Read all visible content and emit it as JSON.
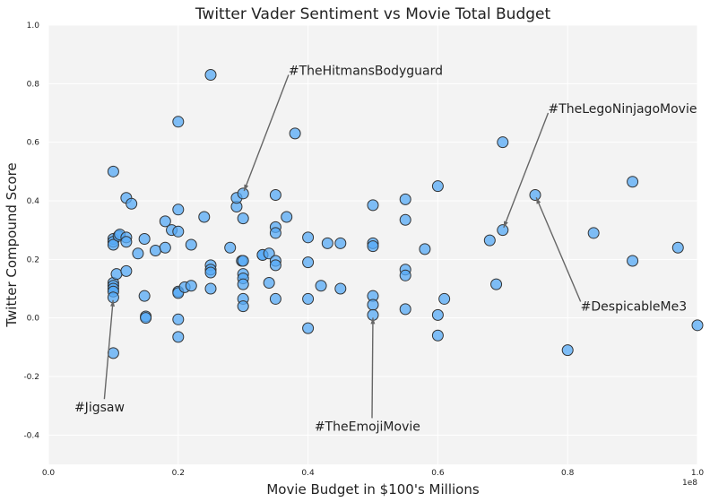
{
  "chart_data": {
    "type": "scatter",
    "title": "Twitter Vader Sentiment vs Movie Total Budget",
    "xlabel": "Movie Budget in $100's Millions",
    "ylabel": "Twitter Compound Score",
    "xlim": [
      0.0,
      1.0
    ],
    "ylim": [
      -0.5,
      1.0
    ],
    "x_offset_label": "1e8",
    "xticks": [
      "0.0",
      "0.2",
      "0.4",
      "0.6",
      "0.8",
      "1.0"
    ],
    "yticks": [
      "-0.4",
      "-0.2",
      "0.0",
      "0.2",
      "0.4",
      "0.6",
      "0.8",
      "1.0"
    ],
    "grid": true,
    "marker_color": "#55aaf5",
    "marker_edge_color": "#333333",
    "plot_background": "#f3f3f3",
    "points": [
      [
        0.1,
        0.5
      ],
      [
        0.1,
        0.27
      ],
      [
        0.1,
        0.26
      ],
      [
        0.1,
        0.25
      ],
      [
        0.1,
        0.12
      ],
      [
        0.1,
        0.11
      ],
      [
        0.1,
        0.1
      ],
      [
        0.1,
        0.09
      ],
      [
        0.1,
        0.07
      ],
      [
        0.1,
        -0.12
      ],
      [
        0.105,
        0.15
      ],
      [
        0.108,
        0.28
      ],
      [
        0.11,
        0.285
      ],
      [
        0.12,
        0.41
      ],
      [
        0.12,
        0.275
      ],
      [
        0.12,
        0.26
      ],
      [
        0.12,
        0.16
      ],
      [
        0.128,
        0.39
      ],
      [
        0.138,
        0.22
      ],
      [
        0.148,
        0.27
      ],
      [
        0.148,
        0.075
      ],
      [
        0.15,
        0.005
      ],
      [
        0.15,
        0.0
      ],
      [
        0.165,
        0.23
      ],
      [
        0.18,
        0.33
      ],
      [
        0.18,
        0.24
      ],
      [
        0.19,
        0.3
      ],
      [
        0.2,
        0.67
      ],
      [
        0.2,
        0.37
      ],
      [
        0.2,
        0.295
      ],
      [
        0.2,
        0.09
      ],
      [
        0.2,
        0.085
      ],
      [
        0.2,
        -0.005
      ],
      [
        0.2,
        -0.065
      ],
      [
        0.21,
        0.105
      ],
      [
        0.22,
        0.11
      ],
      [
        0.22,
        0.25
      ],
      [
        0.24,
        0.345
      ],
      [
        0.25,
        0.83
      ],
      [
        0.25,
        0.18
      ],
      [
        0.25,
        0.165
      ],
      [
        0.25,
        0.155
      ],
      [
        0.25,
        0.1
      ],
      [
        0.28,
        0.24
      ],
      [
        0.29,
        0.38
      ],
      [
        0.29,
        0.41
      ],
      [
        0.298,
        0.195
      ],
      [
        0.3,
        0.425
      ],
      [
        0.3,
        0.34
      ],
      [
        0.3,
        0.195
      ],
      [
        0.3,
        0.15
      ],
      [
        0.3,
        0.135
      ],
      [
        0.3,
        0.115
      ],
      [
        0.3,
        0.065
      ],
      [
        0.3,
        0.04
      ],
      [
        0.33,
        0.215
      ],
      [
        0.33,
        0.215
      ],
      [
        0.34,
        0.22
      ],
      [
        0.34,
        0.12
      ],
      [
        0.35,
        0.42
      ],
      [
        0.35,
        0.31
      ],
      [
        0.35,
        0.29
      ],
      [
        0.35,
        0.195
      ],
      [
        0.35,
        0.18
      ],
      [
        0.35,
        0.065
      ],
      [
        0.367,
        0.345
      ],
      [
        0.38,
        0.63
      ],
      [
        0.4,
        0.275
      ],
      [
        0.4,
        0.19
      ],
      [
        0.4,
        0.065
      ],
      [
        0.4,
        -0.035
      ],
      [
        0.42,
        0.11
      ],
      [
        0.43,
        0.255
      ],
      [
        0.45,
        0.255
      ],
      [
        0.45,
        0.1
      ],
      [
        0.5,
        0.385
      ],
      [
        0.5,
        0.255
      ],
      [
        0.5,
        0.245
      ],
      [
        0.5,
        0.075
      ],
      [
        0.5,
        0.045
      ],
      [
        0.5,
        0.01
      ],
      [
        0.55,
        0.405
      ],
      [
        0.55,
        0.335
      ],
      [
        0.55,
        0.165
      ],
      [
        0.55,
        0.145
      ],
      [
        0.55,
        0.03
      ],
      [
        0.58,
        0.235
      ],
      [
        0.6,
        0.45
      ],
      [
        0.6,
        0.01
      ],
      [
        0.6,
        -0.06
      ],
      [
        0.61,
        0.065
      ],
      [
        0.68,
        0.265
      ],
      [
        0.69,
        0.115
      ],
      [
        0.7,
        0.6
      ],
      [
        0.7,
        0.3
      ],
      [
        0.75,
        0.42
      ],
      [
        0.8,
        -0.11
      ],
      [
        0.84,
        0.29
      ],
      [
        0.9,
        0.465
      ],
      [
        0.9,
        0.195
      ],
      [
        0.97,
        0.24
      ],
      [
        1.0,
        -0.025
      ]
    ],
    "annotations": [
      {
        "text": "#TheHitmansBodyguard",
        "point": [
          0.3,
          0.425
        ],
        "text_pos": [
          0.37,
          0.83
        ]
      },
      {
        "text": "#TheLegoNinjagoMovie",
        "point": [
          0.7,
          0.3
        ],
        "text_pos": [
          0.77,
          0.7
        ]
      },
      {
        "text": "#DespicableMe3",
        "point": [
          0.75,
          0.42
        ],
        "text_pos": [
          0.82,
          0.025
        ]
      },
      {
        "text": "#Jigsaw",
        "point": [
          0.1,
          0.07
        ],
        "text_pos": [
          0.04,
          -0.32
        ]
      },
      {
        "text": "#TheEmojiMovie",
        "point": [
          0.5,
          0.01
        ],
        "text_pos": [
          0.41,
          -0.385
        ]
      }
    ]
  }
}
